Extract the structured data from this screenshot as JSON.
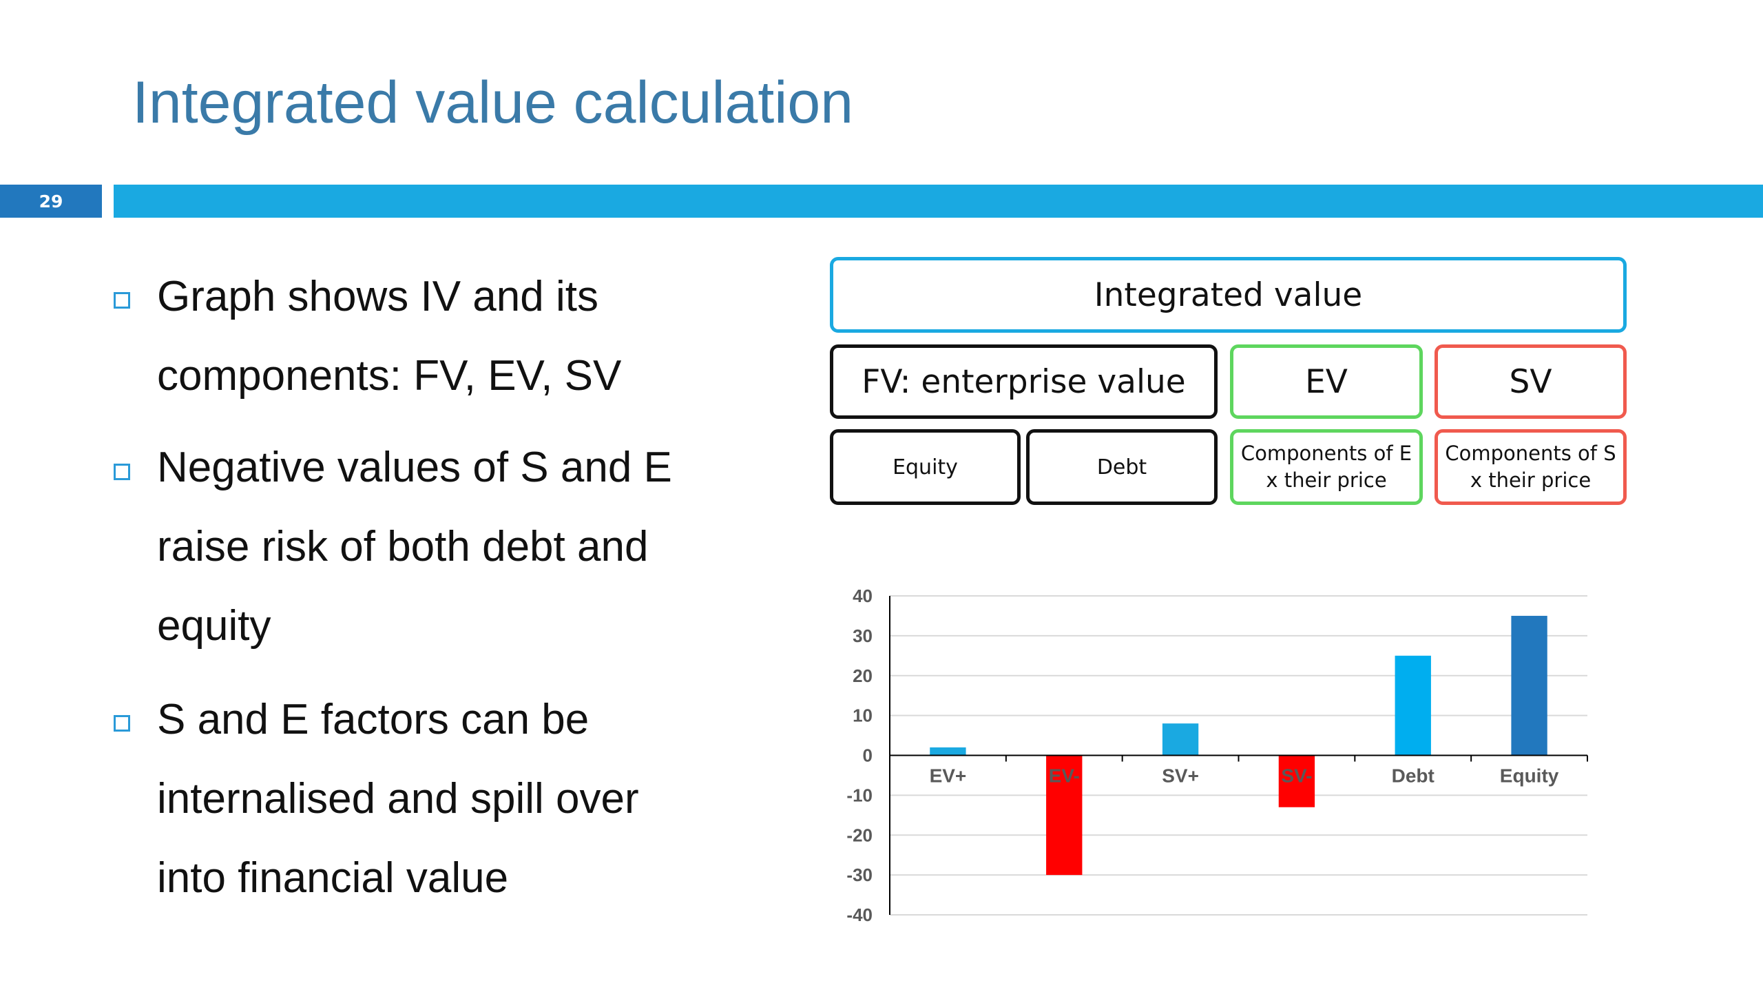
{
  "slide": {
    "title": "Integrated value calculation",
    "number": "29"
  },
  "bullets": [
    {
      "lines": [
        "Graph shows IV and its",
        "components: FV, EV, SV"
      ]
    },
    {
      "lines": [
        "Negative values of S and E",
        "raise risk of both debt and",
        "equity"
      ]
    },
    {
      "lines": [
        "S and E factors can be",
        "internalised and spill over",
        "into financial value"
      ]
    }
  ],
  "diagram": {
    "top": "Integrated value",
    "fv": "FV: enterprise value",
    "ev": "EV",
    "sv": "SV",
    "equity": "Equity",
    "debt": "Debt",
    "ev_components": [
      "Components of E",
      "x their price"
    ],
    "sv_components": [
      "Components of S",
      "x their price"
    ],
    "colors": {
      "iv": "#1aa9e1",
      "fv": "#111111",
      "ev": "#5ed65e",
      "sv": "#f05a4e"
    }
  },
  "chart_data": {
    "type": "bar",
    "categories": [
      "EV+",
      "EV-",
      "SV+",
      "SV-",
      "Debt",
      "Equity"
    ],
    "values": [
      2,
      -30,
      8,
      -13,
      25,
      35
    ],
    "colors": [
      "#1aa9e1",
      "#ff0000",
      "#1aa9e1",
      "#ff0000",
      "#00aeef",
      "#2278be"
    ],
    "ylim": [
      -40,
      40
    ],
    "yticks": [
      40,
      30,
      20,
      10,
      0,
      -10,
      -20,
      -30,
      -40
    ],
    "grid": true,
    "legend": "none"
  }
}
